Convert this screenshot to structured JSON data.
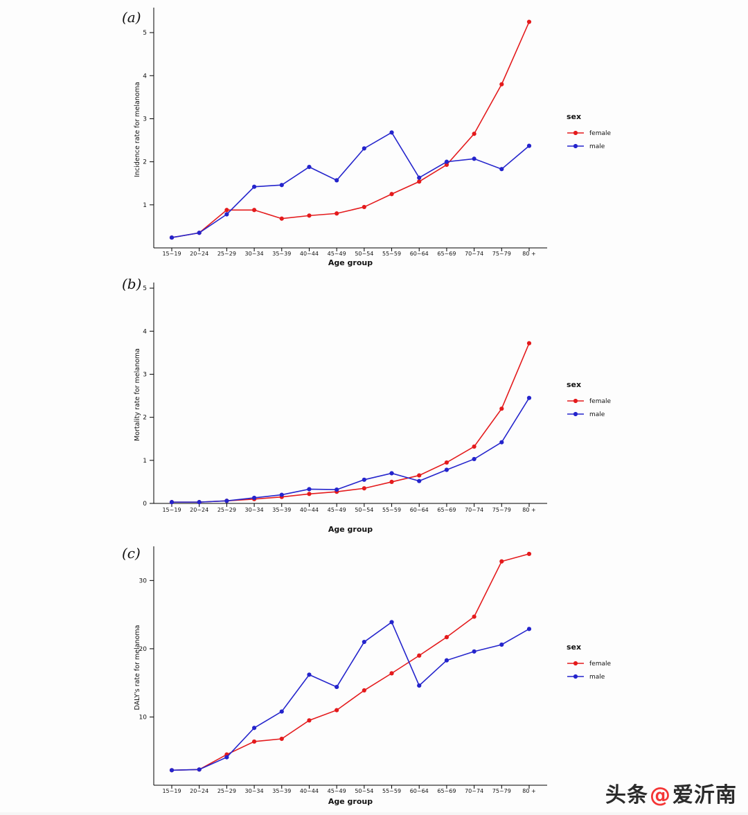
{
  "watermark": {
    "prefix": "头条",
    "at": "@",
    "name": "爱沂南",
    "accent": "#f43535"
  },
  "chart_data": [
    {
      "type": "line",
      "panel_label": "(a)",
      "xlabel": "Age group",
      "ylabel": "Incidence rate for melanoma",
      "legend_title": "sex",
      "legend_position": "right",
      "categories": [
        "15~19",
        "20~24",
        "25~29",
        "30~34",
        "35~39",
        "40~44",
        "45~49",
        "50~54",
        "55~59",
        "60~64",
        "65~69",
        "70~74",
        "75~79",
        "80 +"
      ],
      "yticks": [
        1,
        2,
        3,
        4,
        5
      ],
      "ylim": [
        0,
        5.5
      ],
      "series": [
        {
          "name": "female",
          "color": "#e41a1c",
          "values": [
            0.24,
            0.35,
            0.88,
            0.88,
            0.68,
            0.75,
            0.8,
            0.95,
            1.25,
            1.54,
            1.93,
            2.65,
            3.8,
            5.25
          ]
        },
        {
          "name": "male",
          "color": "#2424cc",
          "values": [
            0.24,
            0.35,
            0.78,
            1.42,
            1.46,
            1.88,
            1.57,
            2.31,
            2.68,
            1.63,
            2.0,
            2.07,
            1.83,
            2.37
          ]
        }
      ]
    },
    {
      "type": "line",
      "panel_label": "(b)",
      "xlabel": "Age group",
      "ylabel": "Mortality rate for melanoma",
      "legend_title": "sex",
      "legend_position": "right",
      "categories": [
        "15~19",
        "20~24",
        "25~29",
        "30~34",
        "35~39",
        "40~44",
        "45~49",
        "50~54",
        "55~59",
        "60~64",
        "65~69",
        "70~74",
        "75~79",
        "80 +"
      ],
      "yticks": [
        0,
        1,
        2,
        3,
        4,
        5
      ],
      "ylim": [
        0,
        5.05
      ],
      "series": [
        {
          "name": "female",
          "color": "#e41a1c",
          "values": [
            0.03,
            0.03,
            0.06,
            0.1,
            0.15,
            0.22,
            0.27,
            0.35,
            0.5,
            0.65,
            0.95,
            1.32,
            2.2,
            3.72
          ]
        },
        {
          "name": "male",
          "color": "#2424cc",
          "values": [
            0.03,
            0.03,
            0.06,
            0.13,
            0.2,
            0.33,
            0.32,
            0.55,
            0.7,
            0.52,
            0.78,
            1.03,
            1.42,
            2.45
          ]
        }
      ]
    },
    {
      "type": "line",
      "panel_label": "(c)",
      "xlabel": "Age group",
      "ylabel": "DALY's rate for melanoma",
      "legend_title": "sex",
      "legend_position": "right",
      "categories": [
        "15~19",
        "20~24",
        "25~29",
        "30~34",
        "35~39",
        "40~44",
        "45~49",
        "50~54",
        "55~59",
        "60~64",
        "65~69",
        "70~74",
        "75~79",
        "80 +"
      ],
      "yticks": [
        10,
        20,
        30
      ],
      "ylim": [
        0,
        34.5
      ],
      "series": [
        {
          "name": "female",
          "color": "#e41a1c",
          "values": [
            2.2,
            2.3,
            4.5,
            6.4,
            6.8,
            9.5,
            11.0,
            13.9,
            16.4,
            19.0,
            21.7,
            24.7,
            32.8,
            33.9
          ]
        },
        {
          "name": "male",
          "color": "#2424cc",
          "values": [
            2.2,
            2.3,
            4.1,
            8.4,
            10.8,
            16.2,
            14.4,
            21.0,
            23.9,
            14.6,
            18.3,
            19.6,
            20.6,
            22.9
          ]
        }
      ]
    }
  ]
}
